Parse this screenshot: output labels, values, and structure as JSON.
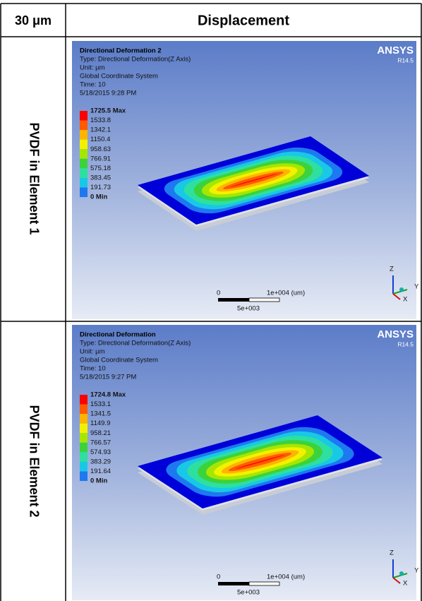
{
  "header": {
    "cells": [
      "30 μm",
      "Displacement"
    ]
  },
  "rows": [
    {
      "label": "PVDF in Element 1",
      "plot": {
        "title": "Directional Deformation 2",
        "info": [
          "Type: Directional Deformation(Z Axis)",
          "Unit: µm",
          "Global Coordinate System",
          "Time: 10",
          "5/18/2015 9:28 PM"
        ],
        "legend": [
          "1725.5 Max",
          "1533.8",
          "1342.1",
          "1150.4",
          "958.63",
          "766.91",
          "575.18",
          "383.45",
          "191.73",
          "0 Min"
        ],
        "brand": "ANSYS",
        "version": "R14.5",
        "scale": {
          "start": "0",
          "end": "1e+004 (um)",
          "mid": "5e+003"
        },
        "axes": [
          "Z",
          "Y",
          "X"
        ]
      }
    },
    {
      "label": "PVDF in Element 2",
      "plot": {
        "title": "Directional Deformation",
        "info": [
          "Type: Directional Deformation(Z Axis)",
          "Unit: µm",
          "Global Coordinate System",
          "Time: 10",
          "5/18/2015 9:27 PM"
        ],
        "legend": [
          "1724.8 Max",
          "1533.1",
          "1341.5",
          "1149.9",
          "958.21",
          "766.57",
          "574.93",
          "383.29",
          "191.64",
          "0 Min"
        ],
        "brand": "ANSYS",
        "version": "R14.5",
        "scale": {
          "start": "0",
          "end": "1e+004 (um)",
          "mid": "5e+003"
        },
        "axes": [
          "Z",
          "Y",
          "X"
        ]
      }
    }
  ]
}
